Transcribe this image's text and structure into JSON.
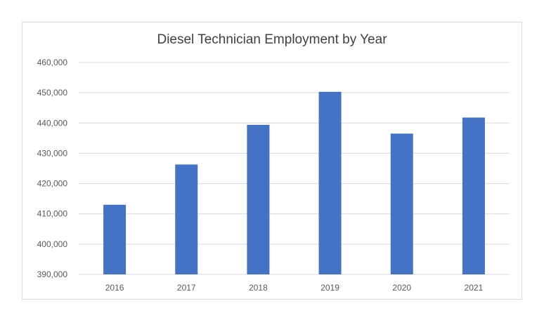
{
  "chart_data": {
    "type": "bar",
    "title": "Diesel Technician Employment by Year",
    "xlabel": "",
    "ylabel": "",
    "categories": [
      "2016",
      "2017",
      "2018",
      "2019",
      "2020",
      "2021"
    ],
    "series": [
      {
        "values": [
          413000,
          426300,
          439400,
          450300,
          436500,
          441800
        ]
      }
    ],
    "ylim": [
      390000,
      460000
    ],
    "yticks": [
      390000,
      400000,
      410000,
      420000,
      430000,
      440000,
      450000,
      460000
    ],
    "ytick_labels": [
      "390,000",
      "400,000",
      "410,000",
      "420,000",
      "430,000",
      "440,000",
      "450,000",
      "460,000"
    ],
    "grid": true,
    "legend": "none",
    "colors": {
      "bar": "#4472c4",
      "grid": "#d9d9d9",
      "text": "#595959",
      "title": "#404040"
    }
  }
}
